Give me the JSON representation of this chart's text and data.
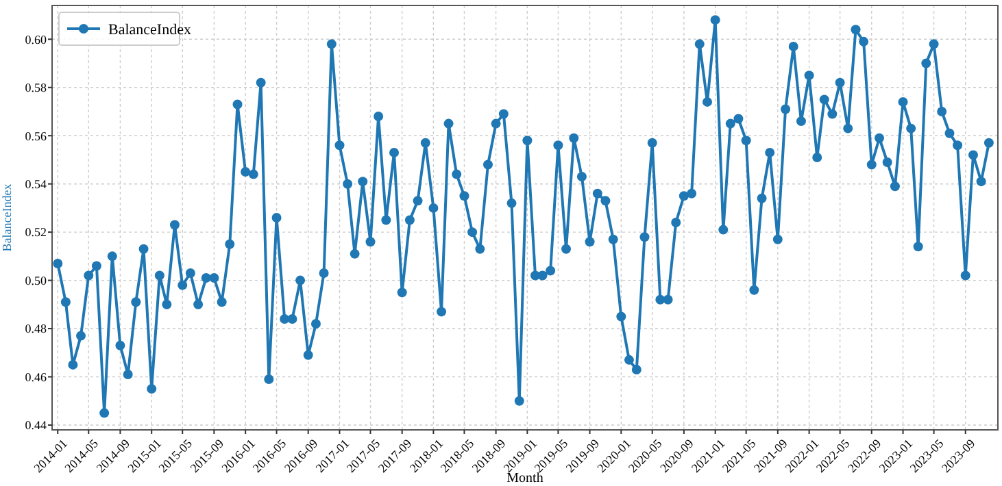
{
  "chart_data": {
    "type": "line",
    "xlabel": "Month",
    "ylabel": "BalanceIndex",
    "legend": "top left",
    "grid": true,
    "marker": "circle",
    "line_style": "solid",
    "x": [
      "2014-01",
      "2014-02",
      "2014-03",
      "2014-04",
      "2014-05",
      "2014-06",
      "2014-07",
      "2014-08",
      "2014-09",
      "2014-10",
      "2014-11",
      "2014-12",
      "2015-01",
      "2015-02",
      "2015-03",
      "2015-04",
      "2015-05",
      "2015-06",
      "2015-07",
      "2015-08",
      "2015-09",
      "2015-10",
      "2015-11",
      "2015-12",
      "2016-01",
      "2016-02",
      "2016-03",
      "2016-04",
      "2016-05",
      "2016-06",
      "2016-07",
      "2016-08",
      "2016-09",
      "2016-10",
      "2016-11",
      "2016-12",
      "2017-01",
      "2017-02",
      "2017-03",
      "2017-04",
      "2017-05",
      "2017-06",
      "2017-07",
      "2017-08",
      "2017-09",
      "2017-10",
      "2017-11",
      "2017-12",
      "2018-01",
      "2018-02",
      "2018-03",
      "2018-04",
      "2018-05",
      "2018-06",
      "2018-07",
      "2018-08",
      "2018-09",
      "2018-10",
      "2018-11",
      "2018-12",
      "2019-01",
      "2019-02",
      "2019-03",
      "2019-04",
      "2019-05",
      "2019-06",
      "2019-07",
      "2019-08",
      "2019-09",
      "2019-10",
      "2019-11",
      "2019-12",
      "2020-01",
      "2020-02",
      "2020-03",
      "2020-04",
      "2020-05",
      "2020-06",
      "2020-07",
      "2020-08",
      "2020-09",
      "2020-10",
      "2020-11",
      "2020-12",
      "2021-01",
      "2021-02",
      "2021-03",
      "2021-04",
      "2021-05",
      "2021-06",
      "2021-07",
      "2021-08",
      "2021-09",
      "2021-10",
      "2021-11",
      "2021-12",
      "2022-01",
      "2022-02",
      "2022-03",
      "2022-04",
      "2022-05",
      "2022-06",
      "2022-07",
      "2022-08",
      "2022-09",
      "2022-10",
      "2022-11",
      "2022-12",
      "2023-01",
      "2023-02",
      "2023-03",
      "2023-04",
      "2023-05",
      "2023-06",
      "2023-07",
      "2023-08",
      "2023-09",
      "2023-10",
      "2023-11",
      "2023-12"
    ],
    "series": [
      {
        "name": "BalanceIndex",
        "color": "#1f77b4",
        "values": [
          0.507,
          0.491,
          0.465,
          0.477,
          0.502,
          0.506,
          0.445,
          0.51,
          0.473,
          0.461,
          0.491,
          0.513,
          0.455,
          0.502,
          0.49,
          0.523,
          0.498,
          0.503,
          0.49,
          0.501,
          0.501,
          0.491,
          0.515,
          0.573,
          0.545,
          0.544,
          0.582,
          0.459,
          0.526,
          0.484,
          0.484,
          0.5,
          0.469,
          0.482,
          0.503,
          0.598,
          0.556,
          0.54,
          0.511,
          0.541,
          0.516,
          0.568,
          0.525,
          0.553,
          0.495,
          0.525,
          0.533,
          0.557,
          0.53,
          0.487,
          0.565,
          0.544,
          0.535,
          0.52,
          0.513,
          0.548,
          0.565,
          0.569,
          0.532,
          0.45,
          0.558,
          0.502,
          0.502,
          0.504,
          0.556,
          0.513,
          0.559,
          0.543,
          0.516,
          0.536,
          0.533,
          0.517,
          0.485,
          0.467,
          0.463,
          0.518,
          0.557,
          0.492,
          0.492,
          0.524,
          0.535,
          0.536,
          0.598,
          0.574,
          0.608,
          0.521,
          0.565,
          0.567,
          0.558,
          0.496,
          0.534,
          0.553,
          0.517,
          0.571,
          0.597,
          0.566,
          0.585,
          0.551,
          0.575,
          0.569,
          0.582,
          0.563,
          0.604,
          0.599,
          0.548,
          0.559,
          0.549,
          0.539,
          0.574,
          0.563,
          0.514,
          0.59,
          0.598,
          0.57,
          0.561,
          0.556,
          0.502,
          0.552,
          0.541,
          0.557
        ]
      }
    ],
    "xlim": [
      "2013-12-10",
      "2024-01-05"
    ],
    "xticks": [
      "2014-01",
      "2014-05",
      "2014-09",
      "2015-01",
      "2015-05",
      "2015-09",
      "2016-01",
      "2016-05",
      "2016-09",
      "2017-01",
      "2017-05",
      "2017-09",
      "2018-01",
      "2018-05",
      "2018-09",
      "2019-01",
      "2019-05",
      "2019-09",
      "2020-01",
      "2020-05",
      "2020-09",
      "2021-01",
      "2021-05",
      "2021-09",
      "2022-01",
      "2022-05",
      "2022-09",
      "2023-01",
      "2023-05",
      "2023-09"
    ],
    "ylim": [
      0.438,
      0.614
    ],
    "yticks": [
      {
        "value": 0.44,
        "label": "0.44"
      },
      {
        "value": 0.46,
        "label": "0.46"
      },
      {
        "value": 0.48,
        "label": "0.48"
      },
      {
        "value": 0.5,
        "label": "0.50"
      },
      {
        "value": 0.52,
        "label": "0.52"
      },
      {
        "value": 0.54,
        "label": "0.54"
      },
      {
        "value": 0.56,
        "label": "0.56"
      },
      {
        "value": 0.58,
        "label": "0.58"
      },
      {
        "value": 0.6,
        "label": "0.60"
      }
    ]
  }
}
